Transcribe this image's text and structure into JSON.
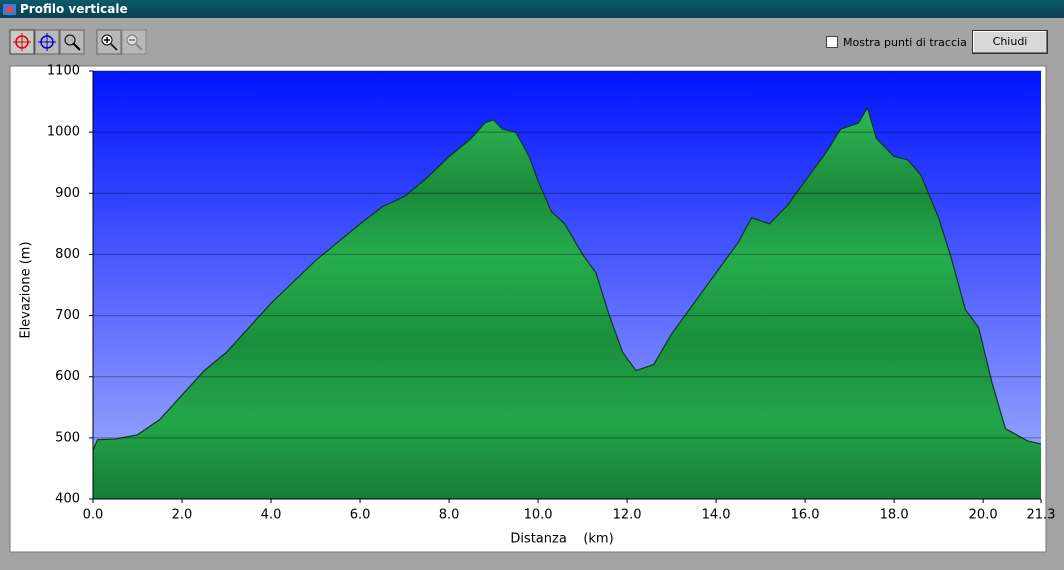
{
  "window": {
    "title": "Profilo verticale"
  },
  "toolbar": {
    "checkbox_label": "Mostra punti di traccia",
    "checkbox_checked": false,
    "close_button": "Chiudi"
  },
  "chart_data": {
    "type": "area",
    "xlabel": "Distanza    (km)",
    "ylabel": "Elevazione (m)",
    "x": [
      0.0,
      0.1,
      0.5,
      1.0,
      1.5,
      2.0,
      2.5,
      3.0,
      3.5,
      4.0,
      4.5,
      5.0,
      5.5,
      6.0,
      6.5,
      7.0,
      7.5,
      8.0,
      8.5,
      8.8,
      9.0,
      9.2,
      9.5,
      9.8,
      10.0,
      10.3,
      10.6,
      11.0,
      11.3,
      11.6,
      11.9,
      12.2,
      12.4,
      12.6,
      13.0,
      13.5,
      14.0,
      14.5,
      14.8,
      15.2,
      15.6,
      16.0,
      16.5,
      16.8,
      17.2,
      17.4,
      17.6,
      18.0,
      18.3,
      18.6,
      19.0,
      19.3,
      19.6,
      19.9,
      20.2,
      20.5,
      21.0,
      21.3
    ],
    "values": [
      480,
      497,
      498,
      505,
      530,
      570,
      610,
      640,
      680,
      720,
      755,
      790,
      820,
      850,
      878,
      895,
      925,
      960,
      990,
      1015,
      1020,
      1005,
      1000,
      960,
      920,
      870,
      850,
      800,
      770,
      700,
      640,
      610,
      615,
      620,
      670,
      720,
      770,
      820,
      860,
      850,
      880,
      920,
      970,
      1005,
      1015,
      1040,
      990,
      960,
      955,
      930,
      860,
      790,
      710,
      680,
      590,
      515,
      495,
      490
    ],
    "color": "#22a84a",
    "xlim": [
      0,
      21.3
    ],
    "ylim": [
      400,
      1100
    ],
    "xticks": [
      {
        "value": 0,
        "label": "0.0"
      },
      {
        "value": 2,
        "label": "2.0"
      },
      {
        "value": 4,
        "label": "4.0"
      },
      {
        "value": 6,
        "label": "6.0"
      },
      {
        "value": 8,
        "label": "8.0"
      },
      {
        "value": 10,
        "label": "10.0"
      },
      {
        "value": 12,
        "label": "12.0"
      },
      {
        "value": 14,
        "label": "14.0"
      },
      {
        "value": 16,
        "label": "16.0"
      },
      {
        "value": 18,
        "label": "18.0"
      },
      {
        "value": 20,
        "label": "20.0"
      },
      21.3
    ],
    "yticks": [
      400,
      500,
      600,
      700,
      800,
      900,
      1000,
      1100
    ],
    "grid": true
  }
}
